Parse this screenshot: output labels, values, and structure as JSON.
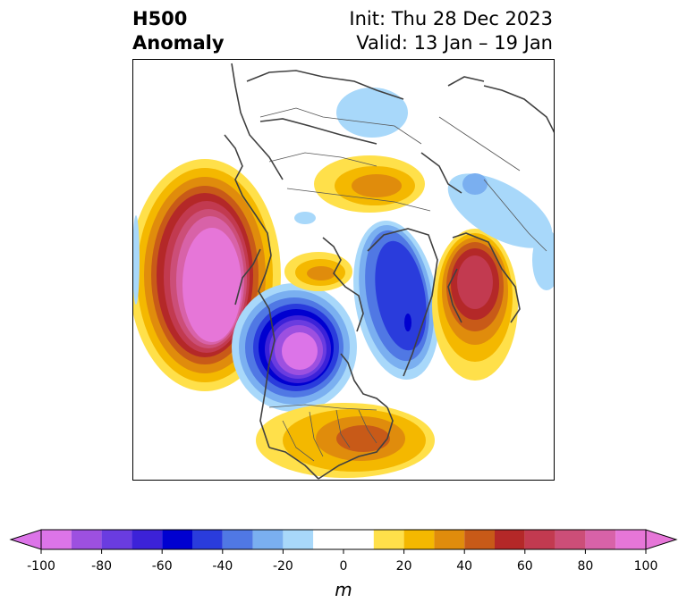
{
  "header": {
    "field": "H500",
    "subtitle": "Anomaly",
    "init": "Init: Thu 28 Dec 2023",
    "valid": "Valid: 13 Jan – 19 Jan"
  },
  "colorbar": {
    "unit": "m",
    "ticks": [
      "-100",
      "-80",
      "-60",
      "-40",
      "-20",
      "0",
      "20",
      "40",
      "60",
      "80",
      "100"
    ],
    "levels": [
      -100,
      -90,
      -80,
      -70,
      -60,
      -50,
      -40,
      -30,
      -20,
      -10,
      10,
      20,
      30,
      40,
      50,
      60,
      70,
      80,
      90,
      100
    ],
    "colors": [
      "#dc74e8",
      "#9d50e0",
      "#6a3ce0",
      "#3c22d8",
      "#0000d0",
      "#2a3cdc",
      "#5078e4",
      "#7aaff0",
      "#a8d8fa",
      "#ffffff",
      "#ffe04a",
      "#f4b800",
      "#e08c0c",
      "#c85a18",
      "#b42828",
      "#c23a50",
      "#cc4e78",
      "#d862a8",
      "#e676d8"
    ],
    "under_color": "#dc74e8",
    "over_color": "#e676d8",
    "extend": "both"
  },
  "map": {
    "projection": "north-polar-stereographic",
    "anomaly_centers": [
      {
        "location": "Gulf of Alaska / NE Pacific",
        "sign": "positive",
        "peak_m": 100
      },
      {
        "location": "Western Canada / NW United States",
        "sign": "negative",
        "peak_m": -100
      },
      {
        "location": "Southeastern United States",
        "sign": "positive",
        "peak_m": 50
      },
      {
        "location": "Greenland / Norwegian Sea",
        "sign": "negative",
        "peak_m": -60
      },
      {
        "location": "Scandinavia / Northern Europe",
        "sign": "positive",
        "peak_m": 70
      },
      {
        "location": "Siberian Arctic",
        "sign": "positive",
        "peak_m": 40
      },
      {
        "location": "Central Siberia",
        "sign": "negative",
        "peak_m": -20
      },
      {
        "location": "Western Russia",
        "sign": "negative",
        "peak_m": -20
      }
    ]
  }
}
